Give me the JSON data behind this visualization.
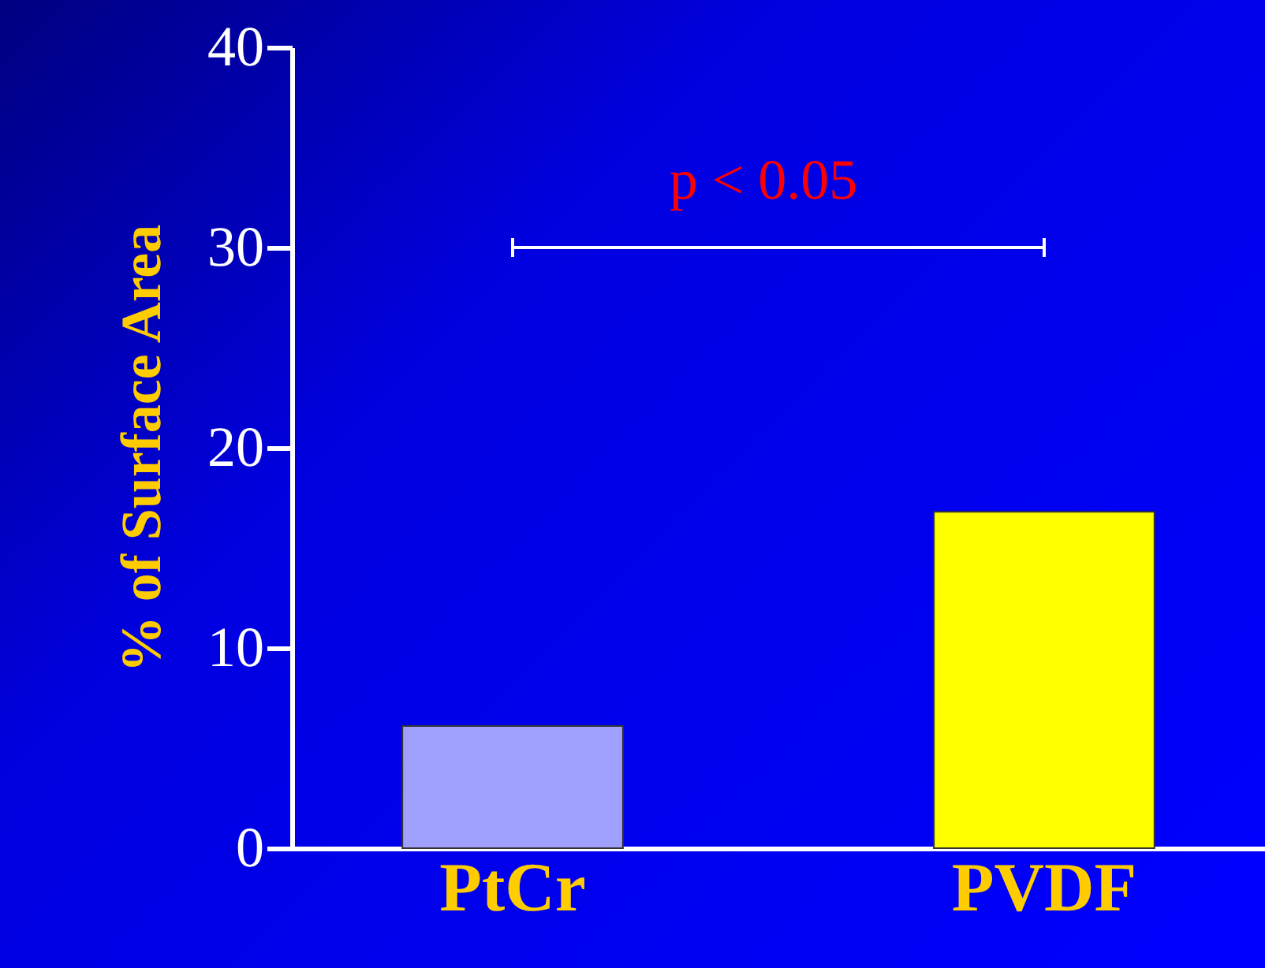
{
  "chart_data": {
    "type": "bar",
    "categories": [
      "PtCr",
      "PVDF"
    ],
    "values": [
      6.1,
      16.8
    ],
    "colors": [
      "#a0a0ff",
      "#ffff00"
    ],
    "ylabel": "% of Surface Area",
    "ylim": [
      0,
      40
    ],
    "yticks": [
      0,
      10,
      20,
      30,
      40
    ],
    "annotations": [
      "p < 0.05"
    ],
    "grid": false
  }
}
